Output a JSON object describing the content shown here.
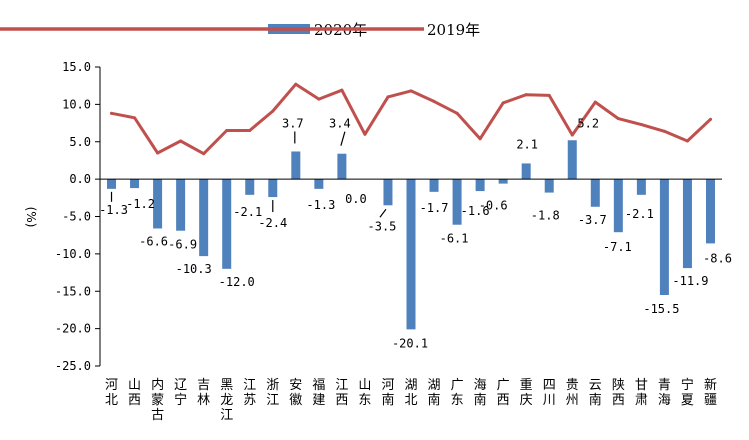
{
  "chart_data": {
    "type": "bar",
    "ylabel": "(%)",
    "ylim": [
      -25,
      15
    ],
    "yticks": [
      "15.0",
      "10.0",
      "5.0",
      "0.0",
      "-5.0",
      "-10.0",
      "-15.0",
      "-20.0",
      "-25.0"
    ],
    "ytick_values": [
      15,
      10,
      5,
      0,
      -5,
      -10,
      -15,
      -20,
      -25
    ],
    "legend_position": "top",
    "categories": [
      "河北",
      "山西",
      "内蒙古",
      "辽宁",
      "吉林",
      "黑龙江",
      "江苏",
      "浙江",
      "安徽",
      "福建",
      "江西",
      "山东",
      "河南",
      "湖北",
      "湖南",
      "广东",
      "海南",
      "广西",
      "重庆",
      "四川",
      "贵州",
      "云南",
      "陕西",
      "甘肃",
      "青海",
      "宁夏",
      "新疆"
    ],
    "series": [
      {
        "name": "2020年",
        "type": "bar",
        "color": "#4f81bd",
        "values": [
          -1.3,
          -1.2,
          -6.6,
          -6.9,
          -10.3,
          -12.0,
          -2.1,
          -2.4,
          3.7,
          -1.3,
          3.4,
          0.0,
          -3.5,
          -20.1,
          -1.7,
          -6.1,
          -1.6,
          -0.6,
          2.1,
          -1.8,
          5.2,
          -3.7,
          -7.1,
          -2.1,
          -15.5,
          -11.9,
          -8.6
        ],
        "labels": [
          "-1.3",
          "-1.2",
          "-6.6",
          "-6.9",
          "-10.3",
          "-12.0",
          "-2.1",
          "-2.4",
          "3.7",
          "-1.3",
          "3.4",
          "0.0",
          "-3.5",
          "-20.1",
          "-1.7",
          "-6.1",
          "-1.6",
          "-0.6",
          "2.1",
          "-1.8",
          "5.2",
          "-3.7",
          "-7.1",
          "-2.1",
          "-15.5",
          "-11.9",
          "-8.6"
        ]
      },
      {
        "name": "2019年",
        "type": "line",
        "color": "#c0504d",
        "values": [
          8.8,
          8.2,
          3.5,
          5.1,
          3.4,
          6.5,
          6.5,
          9.1,
          12.7,
          10.7,
          11.9,
          6.0,
          11.0,
          11.8,
          10.4,
          8.8,
          5.4,
          10.2,
          11.3,
          11.2,
          5.9,
          10.3,
          8.1,
          7.3,
          6.4,
          5.1,
          8.0
        ]
      }
    ]
  }
}
